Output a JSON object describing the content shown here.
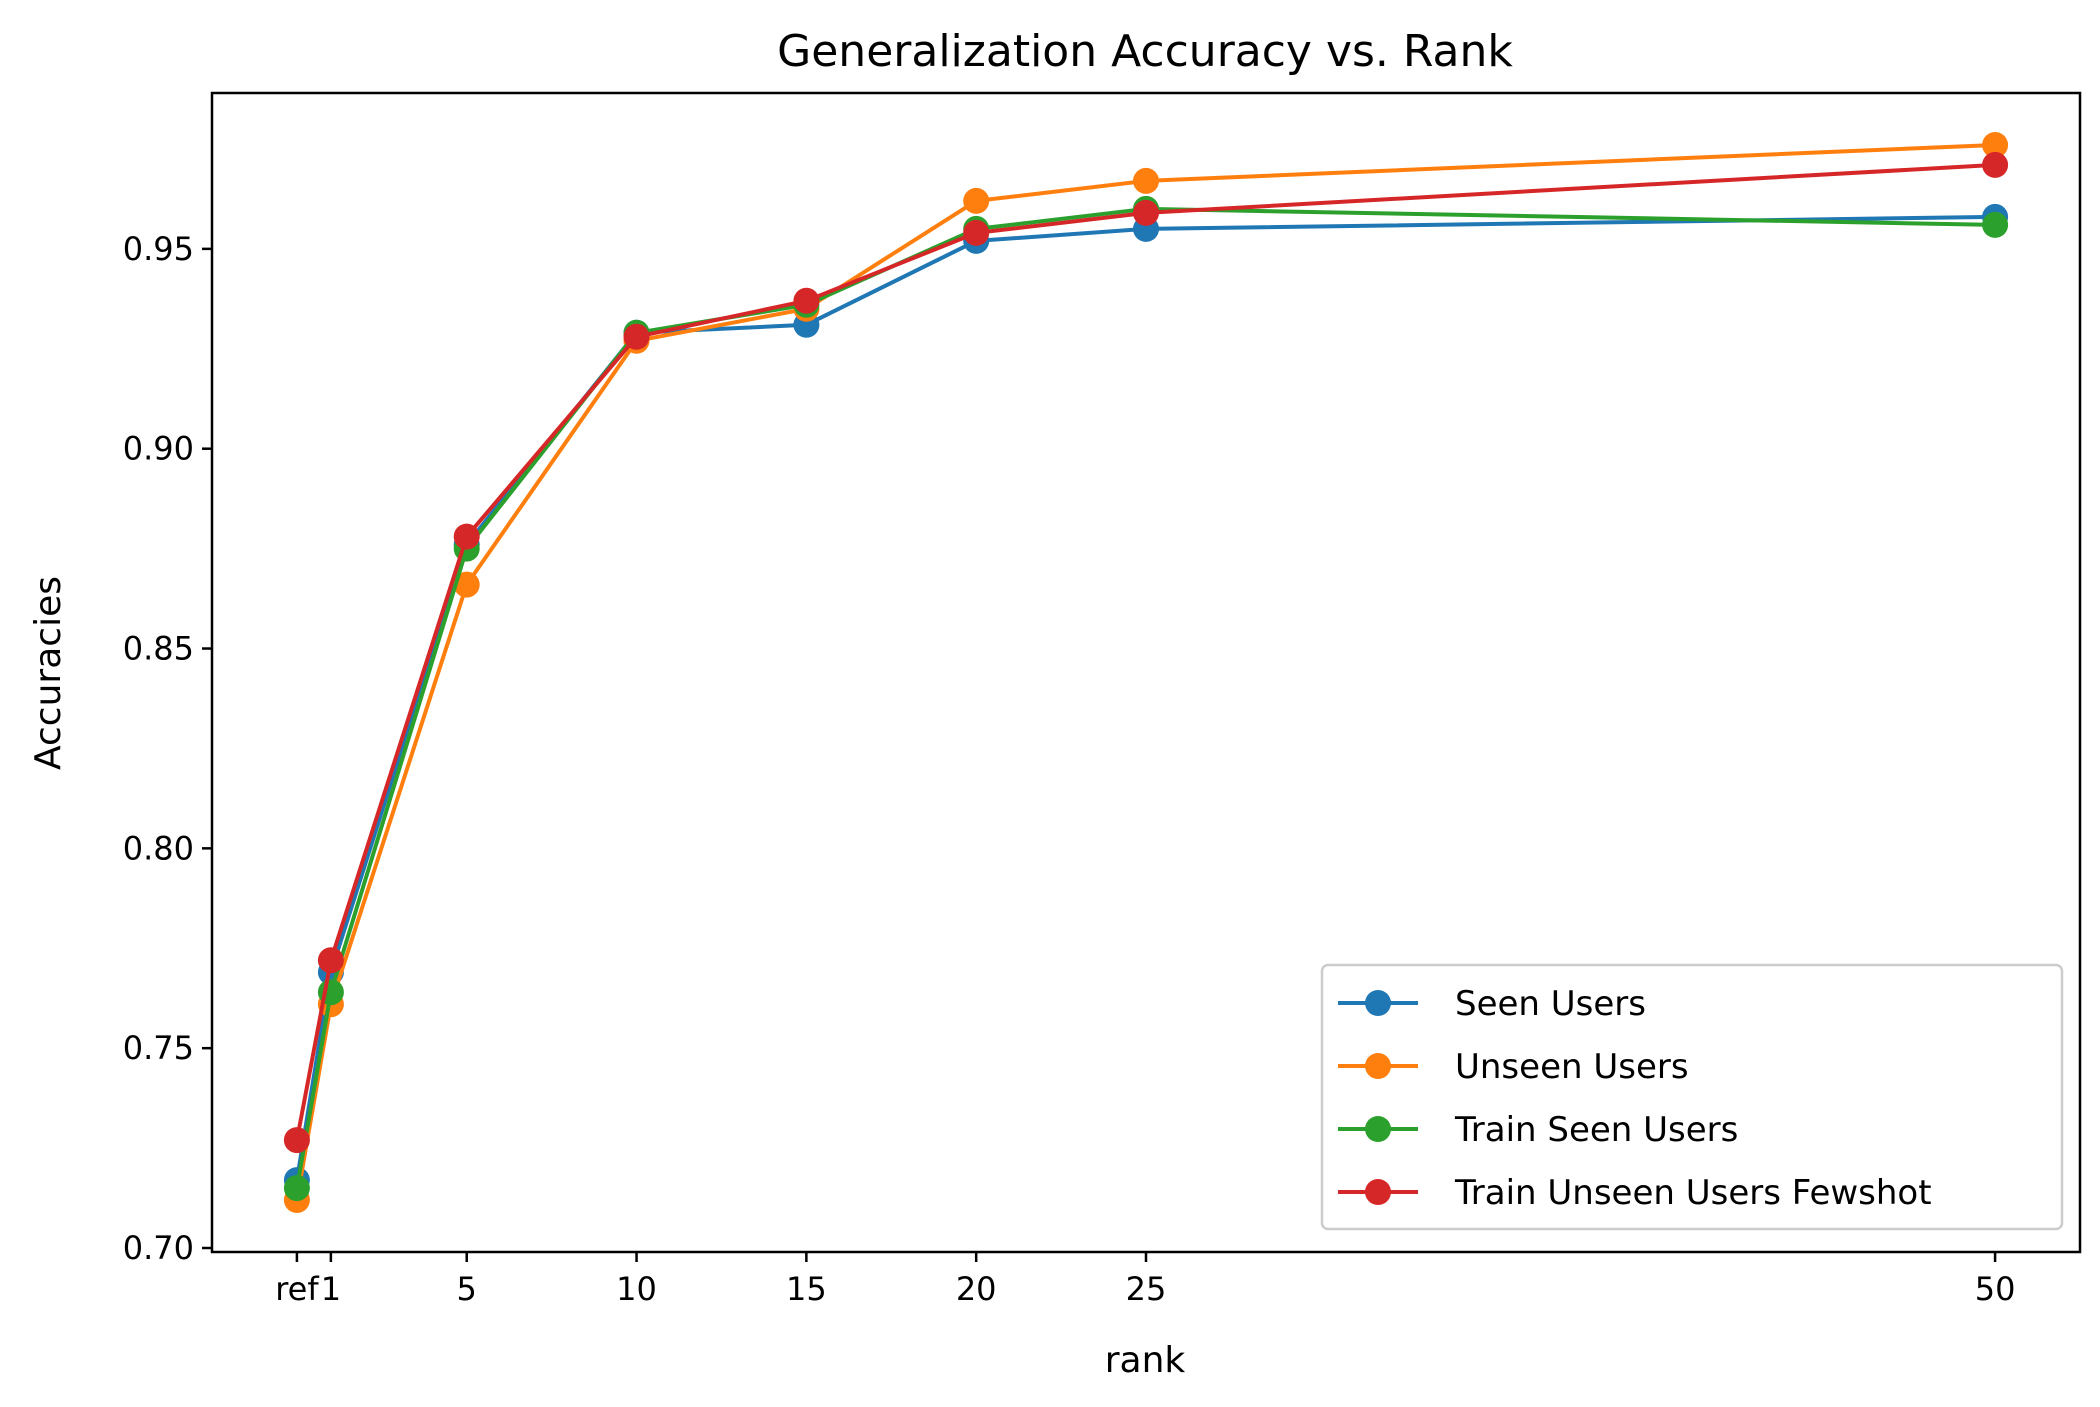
{
  "chart_data": {
    "type": "line",
    "title": "Generalization Accuracy vs. Rank",
    "xlabel": "rank",
    "ylabel": "Accuracies",
    "x": [
      0,
      1,
      5,
      10,
      15,
      20,
      25,
      50
    ],
    "x_tick_labels": [
      "ref",
      "1",
      "5",
      "10",
      "15",
      "20",
      "25",
      "50"
    ],
    "xlim": [
      -2.5,
      52.5
    ],
    "ylim": [
      0.699,
      0.989
    ],
    "y_ticks": [
      0.7,
      0.75,
      0.8,
      0.85,
      0.9,
      0.95
    ],
    "y_tick_labels": [
      "0.70",
      "0.75",
      "0.80",
      "0.85",
      "0.90",
      "0.95"
    ],
    "grid": false,
    "legend_position": "lower-right",
    "series": [
      {
        "name": "Seen Users",
        "color": "#1f77b4",
        "values": [
          0.717,
          0.769,
          0.876,
          0.929,
          0.931,
          0.952,
          0.955,
          0.958
        ]
      },
      {
        "name": "Unseen Users",
        "color": "#ff7f0e",
        "values": [
          0.712,
          0.761,
          0.866,
          0.927,
          0.935,
          0.962,
          0.967,
          0.976
        ]
      },
      {
        "name": "Train Seen Users",
        "color": "#2ca02c",
        "values": [
          0.715,
          0.764,
          0.875,
          0.929,
          0.936,
          0.955,
          0.96,
          0.956
        ]
      },
      {
        "name": "Train Unseen Users Fewshot",
        "color": "#d62728",
        "values": [
          0.727,
          0.772,
          0.878,
          0.928,
          0.937,
          0.954,
          0.959,
          0.971
        ]
      }
    ]
  }
}
